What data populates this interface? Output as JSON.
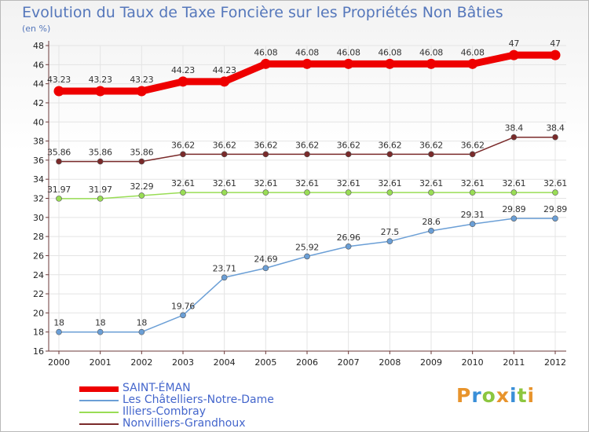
{
  "header": {
    "title": "Evolution du Taux de Taxe Foncière sur les Propriétés Non Bâties",
    "unit": "(en %)"
  },
  "logo": {
    "text": "Proxiti",
    "letter_colors": [
      "#e8942c",
      "#3a8fd8",
      "#8cc63f",
      "#e8942c",
      "#3a8fd8",
      "#8cc63f",
      "#e8942c"
    ]
  },
  "colors": {
    "axis": "#6b3a3a",
    "grid": "#e4e4e4",
    "label": "#333333",
    "tick_label": "#222222"
  },
  "chart_data": {
    "type": "line",
    "x": [
      "2000",
      "2001",
      "2002",
      "2003",
      "2004",
      "2005",
      "2006",
      "2007",
      "2008",
      "2009",
      "2010",
      "2011",
      "2012"
    ],
    "ylim": [
      16,
      48
    ],
    "yticks": [
      16,
      18,
      20,
      22,
      24,
      26,
      28,
      30,
      32,
      34,
      36,
      38,
      40,
      42,
      44,
      46,
      48
    ],
    "grid": true,
    "legend_position": "bottom-left",
    "series": [
      {
        "name": "SAINT-ÉMAN",
        "color": "#ee0000",
        "values": [
          43.23,
          43.23,
          43.23,
          44.23,
          44.23,
          46.08,
          46.08,
          46.08,
          46.08,
          46.08,
          46.08,
          47,
          47
        ],
        "labels": [
          "43.23",
          "43.23",
          "43.23",
          "44.23",
          "44.23",
          "46.08",
          "46.08",
          "46.08",
          "46.08",
          "46.08",
          "46.08",
          "47",
          "47"
        ],
        "emphasis": "thick"
      },
      {
        "name": "Les Châtelliers-Notre-Dame",
        "color": "#6b9fd6",
        "values": [
          18,
          18,
          18,
          19.76,
          23.71,
          24.69,
          25.92,
          26.96,
          27.5,
          28.6,
          29.31,
          29.89,
          29.89
        ],
        "labels": [
          "18",
          "18",
          "18",
          "19.76",
          "23.71",
          "24.69",
          "25.92",
          "26.96",
          "27.5",
          "28.6",
          "29.31",
          "29.89",
          "29.89"
        ]
      },
      {
        "name": "Illiers-Combray",
        "color": "#99dd55",
        "values": [
          31.97,
          31.97,
          32.29,
          32.61,
          32.61,
          32.61,
          32.61,
          32.61,
          32.61,
          32.61,
          32.61,
          32.61,
          32.61
        ],
        "labels": [
          "31.97",
          "31.97",
          "32.29",
          "32.61",
          "32.61",
          "32.61",
          "32.61",
          "32.61",
          "32.61",
          "32.61",
          "32.61",
          "32.61",
          "32.61"
        ]
      },
      {
        "name": "Nonvilliers-Grandhoux",
        "color": "#7a2a2a",
        "values": [
          35.86,
          35.86,
          35.86,
          36.62,
          36.62,
          36.62,
          36.62,
          36.62,
          36.62,
          36.62,
          36.62,
          38.4,
          38.4
        ],
        "labels": [
          "35.86",
          "35.86",
          "35.86",
          "36.62",
          "36.62",
          "36.62",
          "36.62",
          "36.62",
          "36.62",
          "36.62",
          "36.62",
          "38.4",
          "38.4"
        ]
      }
    ]
  }
}
